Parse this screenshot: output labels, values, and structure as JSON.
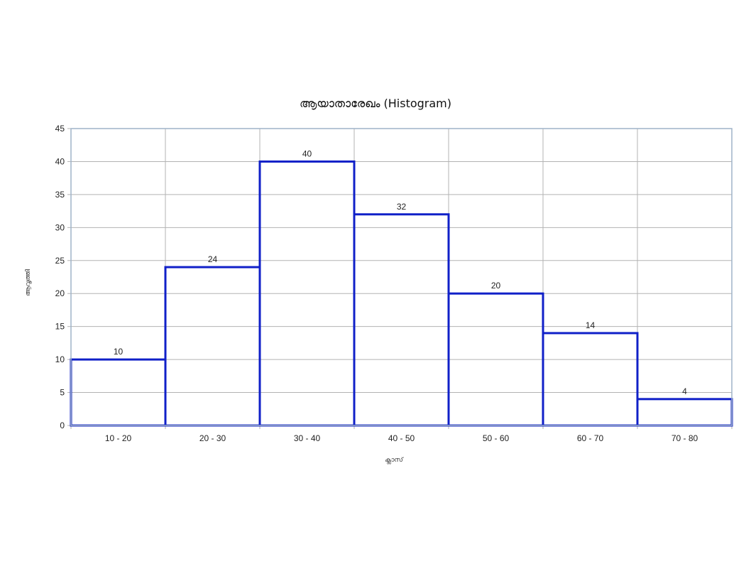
{
  "chart_data": {
    "type": "bar",
    "title": "ആയാതാരേഖം (Histogram)",
    "xlabel": "ക്ലാസ്",
    "ylabel": "ആവൃത്തി",
    "categories": [
      "10 - 20",
      "20 - 30",
      "30 - 40",
      "40 - 50",
      "50 - 60",
      "60 - 70",
      "70 - 80"
    ],
    "series": [
      {
        "values": [
          10,
          24,
          40,
          32,
          20,
          14,
          4
        ]
      }
    ],
    "ylim": [
      0,
      45
    ],
    "yticks": [
      0,
      5,
      10,
      15,
      20,
      25,
      30,
      35,
      40,
      45
    ],
    "grid": true,
    "bar_color": "#1020c8",
    "grid_color": "#b3b3b3",
    "frame_color": "#9fb3c8"
  }
}
